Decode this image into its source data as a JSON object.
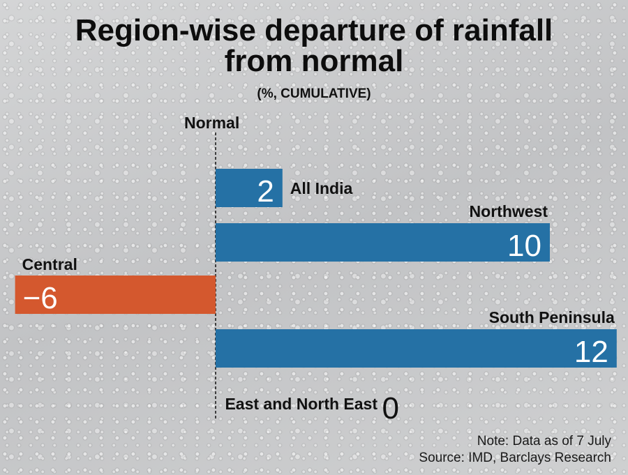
{
  "title_line1": "Region-wise departure of rainfall",
  "title_line2": "from normal",
  "subtitle": "(%, CUMULATIVE)",
  "normal_label": "Normal",
  "note": "Note: Data as of 7 July",
  "source": "Source: IMD, Barclays Research",
  "colors": {
    "positive": "#2571a5",
    "negative": "#d4582e",
    "text": "#111111",
    "value_text": "#ffffff"
  },
  "chart_data": {
    "type": "bar",
    "orientation": "horizontal",
    "title": "Region-wise departure of rainfall from normal",
    "subtitle": "(%, CUMULATIVE)",
    "xlim": [
      -6,
      12
    ],
    "baseline_label": "Normal",
    "categories": [
      "All India",
      "Northwest",
      "Central",
      "South Peninsula",
      "East and North East"
    ],
    "values": [
      2,
      10,
      -6,
      12,
      0
    ],
    "value_labels": [
      "2",
      "10",
      "−6",
      "12",
      "0"
    ]
  }
}
